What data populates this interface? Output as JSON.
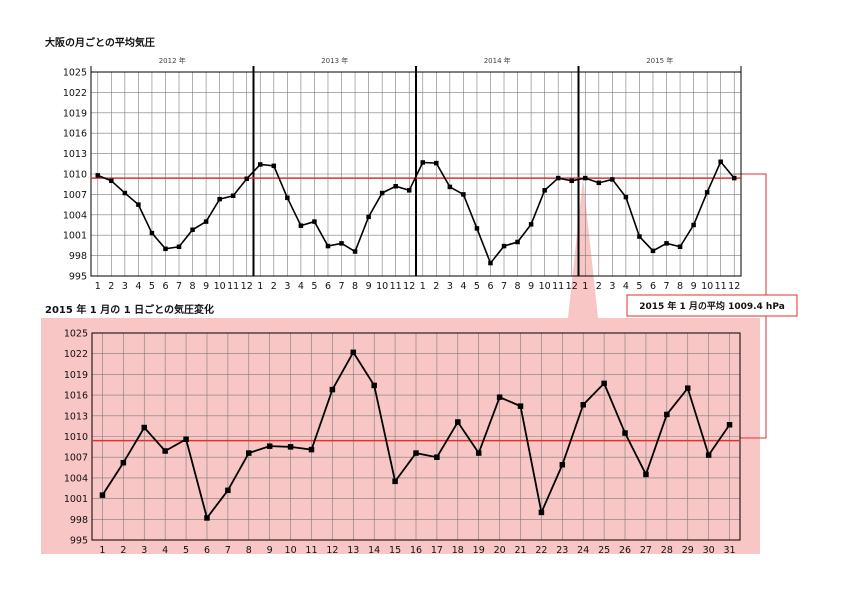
{
  "chart_data": [
    {
      "type": "line",
      "title": "大阪の月ごとの平均気圧",
      "years": [
        "2012 年",
        "2013 年",
        "2014 年",
        "2015 年"
      ],
      "month_labels": [
        "1",
        "2",
        "3",
        "4",
        "5",
        "6",
        "7",
        "8",
        "9",
        "10",
        "11",
        "12"
      ],
      "ylim": [
        995,
        1025
      ],
      "yticks": [
        995,
        998,
        1001,
        1004,
        1007,
        1010,
        1013,
        1016,
        1019,
        1022,
        1025
      ],
      "reference_line": 1009.4,
      "grid": true,
      "values": [
        1009.8,
        1009.0,
        1007.2,
        1005.5,
        1001.3,
        999.0,
        999.3,
        1001.8,
        1003.0,
        1006.3,
        1006.8,
        1009.3,
        1011.4,
        1011.2,
        1006.5,
        1002.4,
        1003.0,
        999.4,
        999.8,
        998.6,
        1003.7,
        1007.2,
        1008.2,
        1007.6,
        1011.7,
        1011.6,
        1008.1,
        1007.0,
        1002.0,
        996.9,
        999.4,
        1000.0,
        1002.6,
        1007.6,
        1009.4,
        1009.0,
        1009.4,
        1008.7,
        1009.2,
        1006.6,
        1000.8,
        998.7,
        999.8,
        999.3,
        1002.5,
        1007.3,
        1011.8,
        1009.4
      ]
    },
    {
      "type": "line",
      "title": "2015 年 1 月の 1 日ごとの気圧変化",
      "x": [
        1,
        2,
        3,
        4,
        5,
        6,
        7,
        8,
        9,
        10,
        11,
        12,
        13,
        14,
        15,
        16,
        17,
        18,
        19,
        20,
        21,
        22,
        23,
        24,
        25,
        26,
        27,
        28,
        29,
        30,
        31
      ],
      "ylim": [
        995,
        1025
      ],
      "yticks": [
        995,
        998,
        1001,
        1004,
        1007,
        1010,
        1013,
        1016,
        1019,
        1022,
        1025
      ],
      "reference_line": 1009.4,
      "grid": true,
      "values": [
        1001.5,
        1006.2,
        1011.3,
        1007.9,
        1009.6,
        998.2,
        1002.2,
        1007.6,
        1008.6,
        1008.5,
        1008.1,
        1016.8,
        1022.2,
        1017.4,
        1003.5,
        1007.6,
        1007.0,
        1012.1,
        1007.6,
        1015.7,
        1014.4,
        999.0,
        1005.9,
        1014.6,
        1017.7,
        1010.5,
        1004.5,
        1013.2,
        1017.0,
        1007.3,
        1011.7
      ]
    }
  ],
  "callout": {
    "text": "2015 年 1 月の平均 1009.4 hPa"
  },
  "colors": {
    "reference": "#e03030",
    "panel_fill": "#f8c6c4",
    "line": "#000000",
    "grid": "#7d7d7d"
  }
}
